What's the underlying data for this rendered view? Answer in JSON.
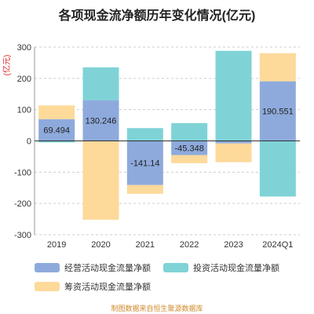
{
  "chart_data": {
    "type": "bar",
    "stacked": true,
    "title": "各项现金流净额历年变化情况(亿元)",
    "unit_label": "(亿元)",
    "categories": [
      "2019",
      "2020",
      "2021",
      "2022",
      "2023",
      "2024Q1"
    ],
    "ylim": [
      -300,
      300
    ],
    "yticks": [
      -300,
      -200,
      -100,
      0,
      100,
      200,
      300
    ],
    "grid": true,
    "legend_position": "bottom",
    "series": [
      {
        "name": "经营活动现金流量净额",
        "color": "#8eaadc",
        "values": [
          69.494,
          130.246,
          -141.14,
          -45.348,
          -8.0,
          190.551
        ]
      },
      {
        "name": "投资活动现金流量净额",
        "color": "#7fd3d6",
        "values": [
          -5.0,
          105.0,
          41.0,
          57.0,
          288.0,
          -178.0
        ]
      },
      {
        "name": "筹资活动现金流量净额",
        "color": "#fdd99a",
        "values": [
          44.0,
          -252.0,
          -28.0,
          -26.0,
          -60.0,
          90.0
        ]
      }
    ],
    "data_labels": [
      "69.494",
      "130.246",
      "-141.14",
      "-45.348",
      "",
      "190.551"
    ]
  },
  "source_note": "制图数据来自恒生聚源数据库"
}
